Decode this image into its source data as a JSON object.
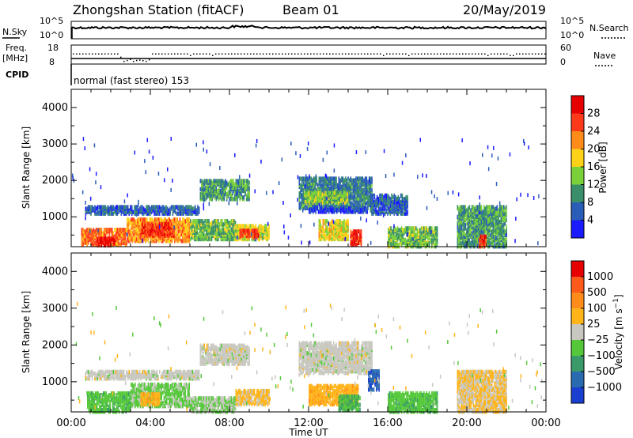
{
  "header": {
    "station": "Zhongshan Station (fitACF)",
    "beam": "Beam 01",
    "date": "20/May/2019"
  },
  "strips": {
    "nsky_label": "N.Sky",
    "nsky_ticks": [
      "10^5",
      "10^0"
    ],
    "nsearch_label": "N.Search",
    "nsearch_ticks": [
      "10^5",
      "10^0"
    ],
    "freq_label_1": "Freq.",
    "freq_label_2": "[MHz]",
    "freq_ticks": [
      "18",
      "8"
    ],
    "nave_label": "Nave",
    "nave_ticks": [
      "60",
      "0"
    ],
    "cpid_label": "CPID",
    "cpid_text": "normal (fast stereo) 153"
  },
  "x_axis": {
    "label": "Time UT",
    "ticks": [
      "00:00",
      "04:00",
      "08:00",
      "12:00",
      "16:00",
      "20:00",
      "00:00"
    ]
  },
  "chart_data": [
    {
      "type": "heatmap",
      "panel": "power",
      "xlabel": "Time UT",
      "ylabel": "Slant Range [km]",
      "xlim": [
        0,
        24
      ],
      "ylim": [
        180,
        4500
      ],
      "yticks": [
        "1000",
        "2000",
        "3000",
        "4000"
      ],
      "colorbar": {
        "label": "Power [dB]",
        "ticks": [
          "4",
          "8",
          "12",
          "16",
          "20",
          "24",
          "28"
        ],
        "colors": [
          "#1a1aff",
          "#2a5db8",
          "#3a8f6a",
          "#7bd13a",
          "#ffd21a",
          "#ff8c1a",
          "#ff3a1a",
          "#e60000"
        ],
        "range": [
          0,
          30
        ]
      },
      "regions": [
        {
          "t0": 0.5,
          "t1": 2.8,
          "r0": 250,
          "r1": 700,
          "v": 22
        },
        {
          "t0": 1.3,
          "t1": 2.2,
          "r0": 230,
          "r1": 450,
          "v": 28
        },
        {
          "t0": 2.8,
          "t1": 6.0,
          "r0": 350,
          "r1": 950,
          "v": 20
        },
        {
          "t0": 3.5,
          "t1": 5.2,
          "r0": 500,
          "r1": 850,
          "v": 25
        },
        {
          "t0": 6.0,
          "t1": 8.3,
          "r0": 400,
          "r1": 900,
          "v": 12
        },
        {
          "t0": 6.5,
          "t1": 9.0,
          "r0": 1500,
          "r1": 2000,
          "v": 10
        },
        {
          "t0": 8.3,
          "t1": 10.0,
          "r0": 400,
          "r1": 800,
          "v": 15
        },
        {
          "t0": 8.5,
          "t1": 9.5,
          "r0": 450,
          "r1": 650,
          "v": 24
        },
        {
          "t0": 0.7,
          "t1": 6.5,
          "r0": 1100,
          "r1": 1300,
          "v": 6
        },
        {
          "t0": 11.5,
          "t1": 15.2,
          "r0": 1250,
          "r1": 2100,
          "v": 8
        },
        {
          "t0": 11.8,
          "t1": 14.0,
          "r0": 1400,
          "r1": 1700,
          "v": 13
        },
        {
          "t0": 12.5,
          "t1": 14.0,
          "r0": 400,
          "r1": 900,
          "v": 16
        },
        {
          "t0": 14.1,
          "t1": 14.7,
          "r0": 250,
          "r1": 650,
          "v": 26
        },
        {
          "t0": 15.1,
          "t1": 17.0,
          "r0": 1100,
          "r1": 1600,
          "v": 6
        },
        {
          "t0": 16.0,
          "t1": 18.5,
          "r0": 200,
          "r1": 700,
          "v": 12
        },
        {
          "t0": 19.5,
          "t1": 22.0,
          "r0": 200,
          "r1": 1300,
          "v": 10
        },
        {
          "t0": 20.6,
          "t1": 21.0,
          "r0": 200,
          "r1": 500,
          "v": 25
        },
        {
          "t0": 12.0,
          "t1": 15.0,
          "r0": 1150,
          "r1": 1250,
          "v": 3
        }
      ]
    },
    {
      "type": "heatmap",
      "panel": "velocity",
      "xlabel": "Time UT",
      "ylabel": "Slant Range [km]",
      "xlim": [
        0,
        24
      ],
      "ylim": [
        180,
        4500
      ],
      "yticks": [
        "1000",
        "2000",
        "3000",
        "4000"
      ],
      "colorbar": {
        "label": "Velocity [m s^-1]",
        "ticks": [
          "1000",
          "500",
          "100",
          "25",
          "−25",
          "−100",
          "−500",
          "−1000"
        ],
        "colors": [
          "#1a3fd0",
          "#2a6ab0",
          "#3a9a6a",
          "#55c83a",
          "#c8c8c0",
          "#ffb41a",
          "#ff8c1a",
          "#ff5a1a",
          "#e60000"
        ],
        "range": [
          -1200,
          1200
        ]
      },
      "regions": [
        {
          "t0": 0.8,
          "t1": 3.0,
          "r0": 200,
          "r1": 700,
          "v": -300
        },
        {
          "t0": 3.0,
          "t1": 6.0,
          "r0": 350,
          "r1": 950,
          "v": -200
        },
        {
          "t0": 3.5,
          "t1": 4.5,
          "r0": 400,
          "r1": 700,
          "v": 300
        },
        {
          "t0": 6.0,
          "t1": 8.3,
          "r0": 200,
          "r1": 600,
          "v": -150
        },
        {
          "t0": 6.5,
          "t1": 9.0,
          "r0": 1500,
          "r1": 2000,
          "v": 0
        },
        {
          "t0": 8.3,
          "t1": 10.0,
          "r0": 400,
          "r1": 800,
          "v": 200
        },
        {
          "t0": 0.7,
          "t1": 6.5,
          "r0": 1100,
          "r1": 1300,
          "v": 0
        },
        {
          "t0": 11.5,
          "t1": 15.2,
          "r0": 1250,
          "r1": 2100,
          "v": 0
        },
        {
          "t0": 12.0,
          "t1": 14.5,
          "r0": 400,
          "r1": 900,
          "v": 300
        },
        {
          "t0": 13.5,
          "t1": 14.6,
          "r0": 250,
          "r1": 650,
          "v": -400
        },
        {
          "t0": 15.0,
          "t1": 15.6,
          "r0": 800,
          "r1": 1300,
          "v": -900
        },
        {
          "t0": 16.0,
          "t1": 18.5,
          "r0": 200,
          "r1": 700,
          "v": -300
        },
        {
          "t0": 19.5,
          "t1": 22.0,
          "r0": 200,
          "r1": 1300,
          "v": 150
        }
      ]
    }
  ]
}
